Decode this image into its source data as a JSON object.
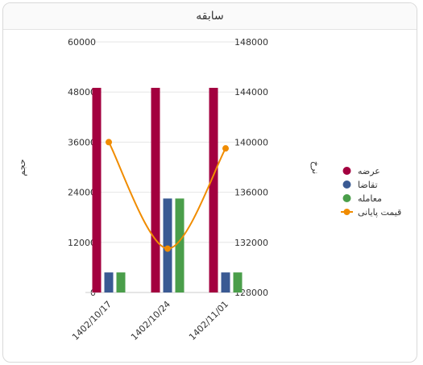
{
  "card": {
    "title": "سابقه"
  },
  "chart_data": {
    "type": "bar",
    "categories": [
      "1402/10/17",
      "1402/10/24",
      "1402/11/01"
    ],
    "series": [
      {
        "name": "عرضه",
        "type": "bar",
        "axis": "left",
        "color": "#a3003f",
        "values": [
          49000,
          49000,
          49000
        ]
      },
      {
        "name": "تقاضا",
        "type": "bar",
        "axis": "left",
        "color": "#3a5a93",
        "values": [
          4800,
          22500,
          4800
        ]
      },
      {
        "name": "معامله",
        "type": "bar",
        "axis": "left",
        "color": "#4a9e4a",
        "values": [
          4800,
          22500,
          4800
        ]
      },
      {
        "name": "قیمت پایانی",
        "type": "line",
        "axis": "right",
        "color": "#f08c00",
        "values": [
          140000,
          131500,
          139500
        ]
      }
    ],
    "ylabel": "حجم",
    "y2label": "نرخ",
    "ylim": [
      0,
      60000
    ],
    "yticks": [
      "0",
      "12000",
      "24000",
      "36000",
      "48000",
      "60000"
    ],
    "y2lim": [
      128000,
      148000
    ],
    "y2ticks": [
      "128000",
      "132000",
      "136000",
      "140000",
      "144000",
      "148000"
    ],
    "grid": true,
    "legend_position": "right"
  }
}
